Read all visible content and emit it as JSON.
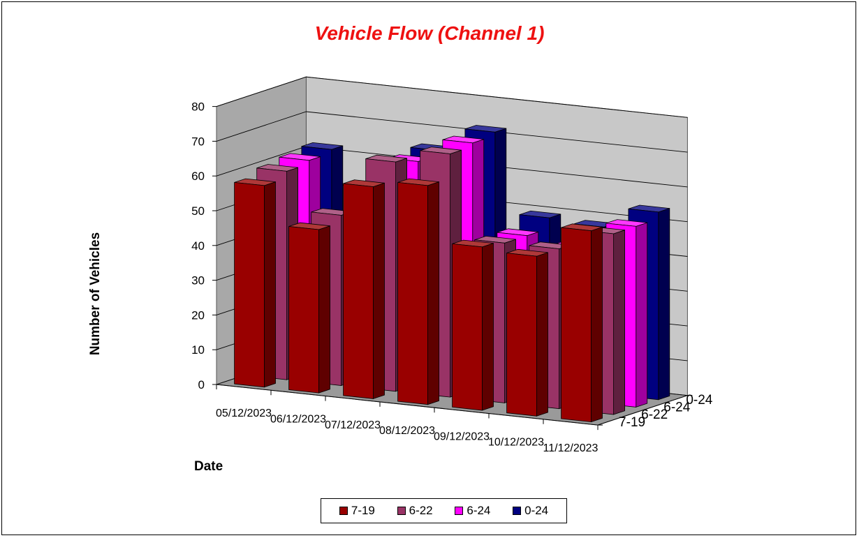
{
  "chart_data": {
    "type": "bar",
    "subtype": "3d-clustered-depth",
    "title": "Vehicle Flow (Channel 1)",
    "xlabel": "Date",
    "ylabel": "Number of Vehicles",
    "ylim": [
      0,
      80
    ],
    "yticks": [
      0,
      10,
      20,
      30,
      40,
      50,
      60,
      70,
      80
    ],
    "categories": [
      "05/12/2023",
      "06/12/2023",
      "07/12/2023",
      "08/12/2023",
      "09/12/2023",
      "10/12/2023",
      "11/12/2023"
    ],
    "series": [
      {
        "name": "7-19",
        "color": "#990000",
        "values": [
          58,
          47,
          61,
          63,
          47,
          46,
          55
        ]
      },
      {
        "name": "6-22",
        "color": "#993366",
        "values": [
          60,
          49,
          66,
          70,
          46,
          46,
          52
        ]
      },
      {
        "name": "6-24",
        "color": "#ff00ff",
        "values": [
          61,
          45,
          64,
          71,
          46,
          44,
          52
        ]
      },
      {
        "name": "0-24",
        "color": "#000080",
        "values": [
          62,
          46,
          65,
          72,
          49,
          48,
          54
        ]
      }
    ],
    "grid": true,
    "legend_position": "bottom"
  }
}
